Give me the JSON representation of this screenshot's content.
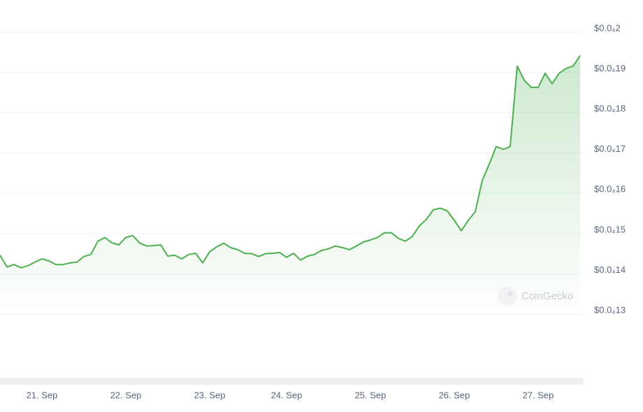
{
  "chart_data": {
    "type": "area",
    "watermark": "CoinGecko",
    "color": "#4caf50",
    "grid": true,
    "ylim": [
      1.3e-05,
      2e-05
    ],
    "yticks": [
      {
        "value": 1.3e-05,
        "label": "$0.0₄13"
      },
      {
        "value": 1.4e-05,
        "label": "$0.0₄14"
      },
      {
        "value": 1.5e-05,
        "label": "$0.0₄15"
      },
      {
        "value": 1.6e-05,
        "label": "$0.0₄16"
      },
      {
        "value": 1.7e-05,
        "label": "$0.0₄17"
      },
      {
        "value": 1.8e-05,
        "label": "$0.0₄18"
      },
      {
        "value": 1.9e-05,
        "label": "$0.0₄19"
      },
      {
        "value": 2e-05,
        "label": "$0.0₄2"
      }
    ],
    "categories": [
      null,
      null,
      null,
      null,
      null,
      null,
      "21. Sep",
      null,
      null,
      null,
      null,
      null,
      null,
      null,
      null,
      null,
      null,
      null,
      "22. Sep",
      null,
      null,
      null,
      null,
      null,
      null,
      null,
      null,
      null,
      null,
      null,
      "23. Sep",
      null,
      null,
      null,
      null,
      null,
      null,
      null,
      null,
      null,
      null,
      "24. Sep",
      null,
      null,
      null,
      null,
      null,
      null,
      null,
      null,
      null,
      null,
      null,
      "25. Sep",
      null,
      null,
      null,
      null,
      null,
      null,
      null,
      null,
      null,
      null,
      null,
      "26. Sep",
      null,
      null,
      null,
      null,
      null,
      null,
      null,
      null,
      null,
      null,
      null,
      "27. Sep",
      null,
      null,
      null,
      null,
      null,
      null
    ],
    "values": [
      1.446e-05,
      1.417e-05,
      1.423e-05,
      1.415e-05,
      1.42e-05,
      1.429e-05,
      1.437e-05,
      1.432e-05,
      1.423e-05,
      1.423e-05,
      1.427e-05,
      1.429e-05,
      1.443e-05,
      1.448e-05,
      1.481e-05,
      1.49e-05,
      1.477e-05,
      1.472e-05,
      1.49e-05,
      1.495e-05,
      1.476e-05,
      1.469e-05,
      1.47e-05,
      1.472e-05,
      1.444e-05,
      1.446e-05,
      1.437e-05,
      1.448e-05,
      1.451e-05,
      1.427e-05,
      1.455e-05,
      1.467e-05,
      1.476e-05,
      1.465e-05,
      1.46e-05,
      1.451e-05,
      1.45e-05,
      1.443e-05,
      1.45e-05,
      1.451e-05,
      1.453e-05,
      1.441e-05,
      1.451e-05,
      1.434e-05,
      1.444e-05,
      1.448e-05,
      1.458e-05,
      1.462e-05,
      1.469e-05,
      1.465e-05,
      1.46e-05,
      1.469e-05,
      1.479e-05,
      1.484e-05,
      1.49e-05,
      1.502e-05,
      1.502e-05,
      1.488e-05,
      1.481e-05,
      1.493e-05,
      1.519e-05,
      1.535e-05,
      1.559e-05,
      1.563e-05,
      1.556e-05,
      1.533e-05,
      1.507e-05,
      1.533e-05,
      1.554e-05,
      1.632e-05,
      1.672e-05,
      1.716e-05,
      1.709e-05,
      1.716e-05,
      1.916e-05,
      1.881e-05,
      1.863e-05,
      1.863e-05,
      1.898e-05,
      1.872e-05,
      1.898e-05,
      1.91e-05,
      1.916e-05,
      1.942e-05
    ]
  }
}
